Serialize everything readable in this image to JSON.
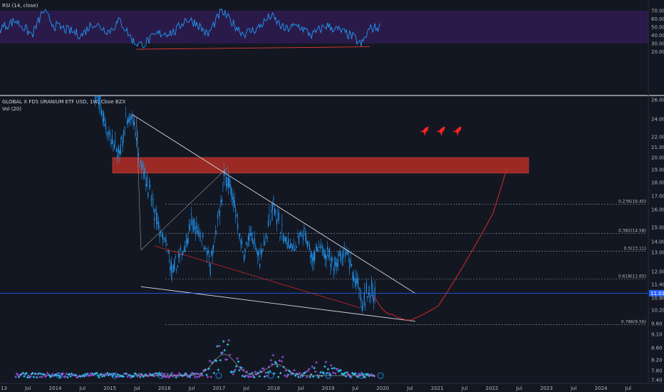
{
  "chart_data": {
    "type": "line",
    "rsi": {
      "label": "RSI (14, close)",
      "y_ticks": [
        "70.00",
        "60.00",
        "50.00",
        "40.00",
        "30.00",
        "20.00"
      ],
      "band": [
        30,
        70
      ],
      "divergence_line": {
        "from": {
          "x": "2015-07",
          "y": 23
        },
        "to": {
          "x": "2019-10",
          "y": 26
        }
      }
    },
    "price": {
      "title": "GLOBAL X FDS URANIUM ETF USD, 1W, Cboe BZX",
      "volume_label": "Vol (20)",
      "y_ticks": [
        "26.00",
        "24.00",
        "22.00",
        "21.00",
        "20.00",
        "19.00",
        "18.00",
        "17.00",
        "16.00",
        "15.00",
        "14.00",
        "13.00",
        "12.00",
        "11.40",
        "10.80",
        "10.20",
        "9.60",
        "9.10",
        "8.60",
        "8.20",
        "7.80",
        "7.40"
      ],
      "last_price": "11.01",
      "fib_levels": [
        {
          "label": "0.236(16.40)",
          "value": 16.4
        },
        {
          "label": "0.382(14.58)",
          "value": 14.58
        },
        {
          "label": "0.5(13.11)",
          "value": 13.11
        },
        {
          "label": "0.618(11.65)",
          "value": 11.65
        },
        {
          "label": "0.786(9.56)",
          "value": 9.56
        }
      ],
      "resistance_zone": [
        19.3,
        20.0
      ],
      "wedge_upper": {
        "from": {
          "x": "2015-06",
          "y": 24.5
        },
        "to": {
          "x": "2020-08",
          "y": 11.0
        }
      },
      "wedge_lower": {
        "from": {
          "x": "2015-08",
          "y": 11.3
        },
        "to": {
          "x": "2020-08",
          "y": 9.7
        }
      },
      "projection": [
        {
          "x": "2019-11",
          "y": 10.9
        },
        {
          "x": "2020-03",
          "y": 10.0
        },
        {
          "x": "2020-07",
          "y": 9.75
        },
        {
          "x": "2021-01",
          "y": 10.4
        },
        {
          "x": "2021-07",
          "y": 12.5
        },
        {
          "x": "2022-01",
          "y": 15.8
        },
        {
          "x": "2022-04",
          "y": 19.1
        }
      ]
    },
    "x_ticks": [
      "13",
      "Jul",
      "2014",
      "Jul",
      "2015",
      "Jul",
      "2016",
      "Jul",
      "2017",
      "Jul",
      "2018",
      "Jul",
      "2019",
      "Jul",
      "2020",
      "Jul",
      "2021",
      "Jul",
      "2022",
      "Jul",
      "2023",
      "Jul",
      "2024",
      "Jul"
    ],
    "colors": {
      "background": "#131722",
      "rsi_line": "#2196f3",
      "rsi_band": "#2a1a4a",
      "up": "#2196f3",
      "zone": "#9b2a24",
      "projection": "#c62828",
      "wedge": "#d1d4dc",
      "last_price_bg": "#2962ff",
      "rockets": "#ff2020"
    }
  }
}
